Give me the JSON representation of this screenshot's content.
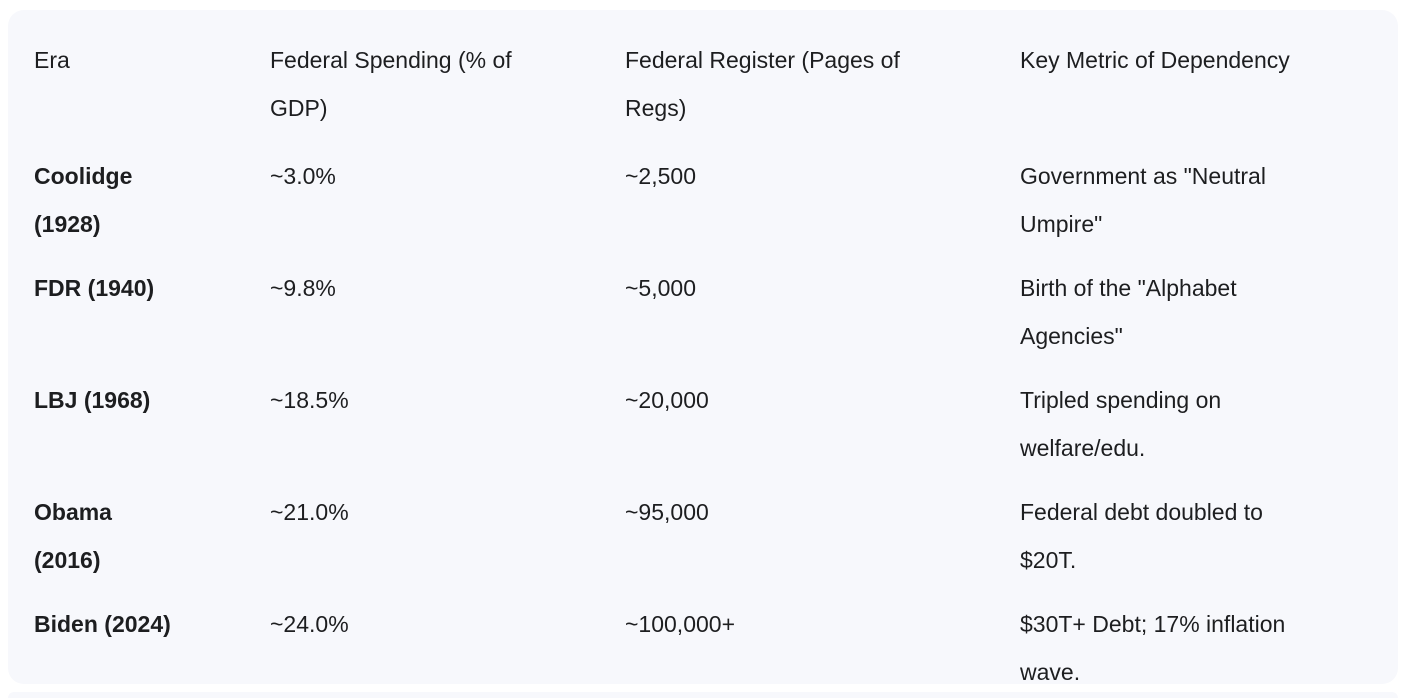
{
  "card": {
    "background": "#f7f8fc",
    "text_color": "#1d1e20"
  },
  "table": {
    "columns": [
      "Era",
      "Federal Spending (% of\nGDP)",
      "Federal Register (Pages of\nRegs)",
      "Key Metric of Dependency"
    ],
    "rows": [
      {
        "era": "Coolidge\n(1928)",
        "spending": "~3.0%",
        "register": "~2,500",
        "metric": "Government as \"Neutral\nUmpire\""
      },
      {
        "era": "FDR (1940)",
        "spending": "~9.8%",
        "register": "~5,000",
        "metric": "Birth of the \"Alphabet\nAgencies\""
      },
      {
        "era": "LBJ (1968)",
        "spending": "~18.5%",
        "register": "~20,000",
        "metric": "Tripled spending on\nwelfare/edu."
      },
      {
        "era": "Obama\n(2016)",
        "spending": "~21.0%",
        "register": "~95,000",
        "metric": "Federal debt doubled to\n$20T."
      },
      {
        "era": "Biden (2024)",
        "spending": "~24.0%",
        "register": "~100,000+",
        "metric": "$30T+ Debt; 17% inflation\nwave."
      }
    ]
  },
  "chart_data": {
    "type": "table",
    "title": "",
    "columns": [
      "Era",
      "Federal Spending (% of GDP)",
      "Federal Register (Pages of Regs)",
      "Key Metric of Dependency"
    ],
    "rows": [
      [
        "Coolidge (1928)",
        "~3.0%",
        "~2,500",
        "Government as \"Neutral Umpire\""
      ],
      [
        "FDR (1940)",
        "~9.8%",
        "~5,000",
        "Birth of the \"Alphabet Agencies\""
      ],
      [
        "LBJ (1968)",
        "~18.5%",
        "~20,000",
        "Tripled spending on welfare/edu."
      ],
      [
        "Obama (2016)",
        "~21.0%",
        "~95,000",
        "Federal debt doubled to $20T."
      ],
      [
        "Biden (2024)",
        "~24.0%",
        "~100,000+",
        "$30T+ Debt; 17% inflation wave."
      ]
    ],
    "federal_spending_pct_gdp": {
      "categories": [
        "Coolidge (1928)",
        "FDR (1940)",
        "LBJ (1968)",
        "Obama (2016)",
        "Biden (2024)"
      ],
      "values": [
        3.0,
        9.8,
        18.5,
        21.0,
        24.0
      ]
    },
    "federal_register_pages": {
      "categories": [
        "Coolidge (1928)",
        "FDR (1940)",
        "LBJ (1968)",
        "Obama (2016)",
        "Biden (2024)"
      ],
      "values": [
        2500,
        5000,
        20000,
        95000,
        100000
      ]
    }
  }
}
